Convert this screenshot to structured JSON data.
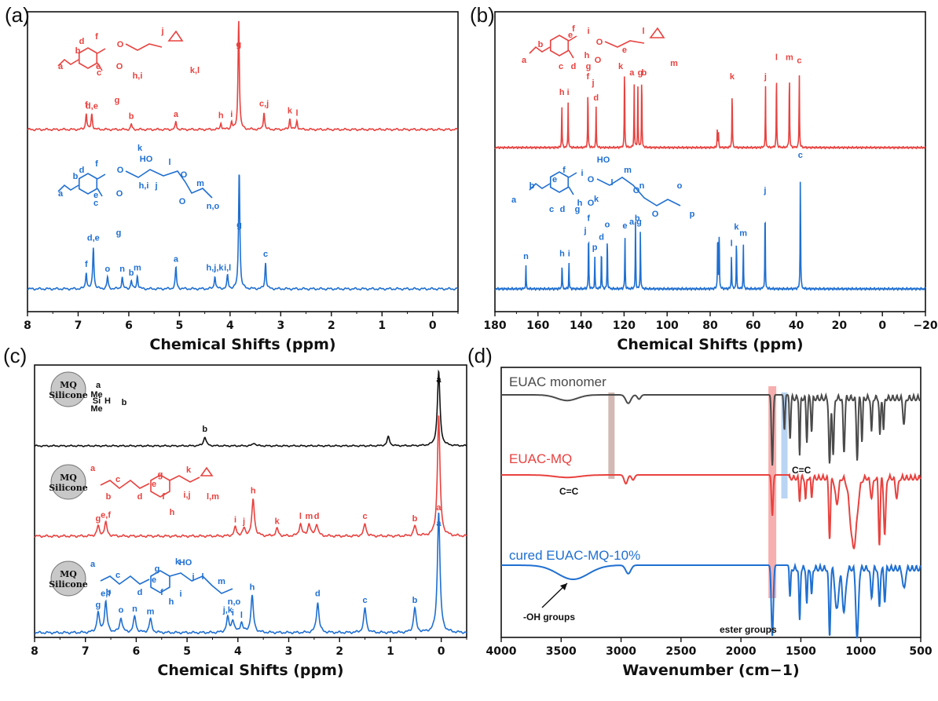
{
  "colors": {
    "red": "#e8423f",
    "blue": "#1f6fd1",
    "black": "#111111",
    "grey": "#4a4a4a",
    "band_brown": "#c7a8a0",
    "band_red": "#f59a9a",
    "band_blue": "#a9c9f0"
  },
  "panels": {
    "a": "(a)",
    "b": "(b)",
    "c": "(c)",
    "d": "(d)"
  },
  "chart_data": [
    {
      "id": "a",
      "type": "line",
      "xlabel": "Chemical Shifts (ppm)",
      "xlim": [
        8,
        -0.5
      ],
      "xticks": [
        "8",
        "7",
        "6",
        "5",
        "4",
        "3",
        "2",
        "1",
        "0"
      ],
      "series": [
        {
          "color": "red",
          "peaks": [
            [
              6.84,
              0.15,
              "f"
            ],
            [
              6.73,
              0.14,
              "d,e"
            ],
            [
              5.95,
              0.05,
              "b"
            ],
            [
              5.07,
              0.07,
              "a"
            ],
            [
              4.18,
              0.06,
              "h"
            ],
            [
              3.97,
              0.07,
              "i"
            ],
            [
              3.83,
              1.0,
              "g"
            ],
            [
              3.33,
              0.16,
              "c,j"
            ],
            [
              2.82,
              0.1,
              "k"
            ],
            [
              2.68,
              0.08,
              "l"
            ]
          ],
          "structure_labels": [
            "a",
            "b",
            "c",
            "d",
            "e",
            "f",
            "g",
            "h,i",
            "j",
            "k,l"
          ]
        },
        {
          "color": "blue",
          "peaks": [
            [
              6.84,
              0.14,
              "f"
            ],
            [
              6.7,
              0.35,
              "d,e"
            ],
            [
              6.42,
              0.1,
              "o"
            ],
            [
              6.13,
              0.1,
              "n"
            ],
            [
              5.95,
              0.07,
              "b"
            ],
            [
              5.83,
              0.11,
              "m"
            ],
            [
              5.07,
              0.18,
              "a"
            ],
            [
              4.3,
              0.11,
              "h,j,k"
            ],
            [
              4.05,
              0.11,
              "i,l"
            ],
            [
              3.82,
              1.0,
              "g"
            ],
            [
              3.3,
              0.22,
              "c"
            ]
          ],
          "structure_labels": [
            "a",
            "b",
            "c",
            "d",
            "e",
            "f",
            "g",
            "h,i",
            "j",
            "k",
            "l",
            "m",
            "n,o"
          ]
        }
      ]
    },
    {
      "id": "b",
      "type": "line",
      "xlabel": "Chemical Shifts (ppm)",
      "xlim": [
        180,
        -20
      ],
      "xticks": [
        "180",
        "160",
        "140",
        "120",
        "100",
        "80",
        "60",
        "40",
        "20",
        "0",
        "−20"
      ],
      "series": [
        {
          "color": "red",
          "peaks": [
            [
              148.9,
              0.45,
              "h"
            ],
            [
              146,
              0.45,
              "i"
            ],
            [
              136.8,
              0.6,
              "f"
            ],
            [
              133,
              0.4,
              "d"
            ],
            [
              119.8,
              0.85,
              "e"
            ],
            [
              115.3,
              0.62,
              "a"
            ],
            [
              113.6,
              0.62,
              "g"
            ],
            [
              111.8,
              0.75,
              "b"
            ],
            [
              76.7,
              0.17,
              ""
            ],
            [
              76.2,
              0.17,
              ""
            ],
            [
              69.8,
              0.6,
              "k"
            ],
            [
              54.3,
              0.6,
              "j"
            ],
            [
              49.2,
              0.78,
              "l"
            ],
            [
              43.2,
              0.78,
              "m"
            ],
            [
              38.6,
              0.75,
              "c"
            ]
          ],
          "structure_labels": [
            "a",
            "b",
            "c",
            "d",
            "e",
            "f",
            "g",
            "h",
            "i",
            "j",
            "k",
            "l",
            "m"
          ]
        },
        {
          "color": "blue",
          "peaks": [
            [
              165.6,
              0.2,
              "n"
            ],
            [
              148.8,
              0.22,
              "h"
            ],
            [
              145.6,
              0.22,
              "i"
            ],
            [
              136.5,
              0.5,
              "f"
            ],
            [
              133.6,
              0.27,
              "p"
            ],
            [
              130.5,
              0.35,
              "d"
            ],
            [
              127.8,
              0.45,
              "o"
            ],
            [
              119.6,
              0.44,
              "e"
            ],
            [
              114.7,
              0.55,
              "a,g"
            ],
            [
              112.4,
              0.5,
              "b"
            ],
            [
              76.5,
              0.5,
              ""
            ],
            [
              75.8,
              0.5,
              ""
            ],
            [
              70.1,
              0.3,
              "l"
            ],
            [
              67.8,
              0.43,
              "k"
            ],
            [
              64.6,
              0.38,
              "m"
            ],
            [
              54.5,
              0.72,
              "j"
            ],
            [
              38.1,
              1.0,
              "c"
            ]
          ],
          "structure_labels": [
            "a",
            "b",
            "c",
            "d",
            "e",
            "f",
            "g",
            "h",
            "i",
            "j",
            "k",
            "l",
            "m",
            "n",
            "o",
            "p"
          ]
        }
      ]
    },
    {
      "id": "c",
      "type": "line",
      "xlabel": "Chemical Shifts (ppm)",
      "xlim": [
        8,
        -0.5
      ],
      "xticks": [
        "8",
        "7",
        "6",
        "5",
        "4",
        "3",
        "2",
        "1",
        "0"
      ],
      "series": [
        {
          "color": "black",
          "peaks": [
            [
              4.65,
              0.12,
              "b"
            ],
            [
              3.68,
              0.04,
              ""
            ],
            [
              1.04,
              0.12,
              ""
            ],
            [
              0.05,
              1.0,
              "a"
            ]
          ],
          "structure_labels": [
            "MQ",
            "Silicone",
            "a",
            "Me",
            "Si",
            "H",
            "Me",
            "b"
          ]
        },
        {
          "color": "red",
          "peaks": [
            [
              6.75,
              0.08,
              "g"
            ],
            [
              6.6,
              0.11,
              "e,f"
            ],
            [
              4.05,
              0.07,
              "i"
            ],
            [
              3.88,
              0.06,
              "j"
            ],
            [
              3.7,
              0.3,
              "h"
            ],
            [
              3.23,
              0.06,
              "k"
            ],
            [
              2.77,
              0.1,
              "l"
            ],
            [
              2.6,
              0.1,
              "m"
            ],
            [
              2.45,
              0.1,
              "d"
            ],
            [
              1.5,
              0.1,
              "c"
            ],
            [
              0.52,
              0.08,
              "b"
            ],
            [
              0.05,
              1.0,
              "a"
            ]
          ],
          "structure_labels": [
            "MQ",
            "Silicone",
            "a",
            "Me",
            "Si",
            "Me",
            "b",
            "c",
            "d",
            "g",
            "e",
            "f",
            "O",
            "h",
            "i,j",
            "k",
            "O",
            "l,m"
          ]
        },
        {
          "color": "blue",
          "peaks": [
            [
              6.75,
              0.16,
              "g"
            ],
            [
              6.6,
              0.25,
              "e,f"
            ],
            [
              6.3,
              0.12,
              "o"
            ],
            [
              6.03,
              0.13,
              "n"
            ],
            [
              5.72,
              0.11,
              "m"
            ],
            [
              4.2,
              0.12,
              "j,k"
            ],
            [
              4.1,
              0.1,
              "i"
            ],
            [
              3.93,
              0.08,
              "l"
            ],
            [
              3.72,
              0.3,
              "h"
            ],
            [
              2.43,
              0.25,
              "d"
            ],
            [
              1.5,
              0.2,
              "c"
            ],
            [
              0.52,
              0.2,
              "b"
            ],
            [
              0.05,
              1.0,
              "a"
            ]
          ],
          "structure_labels": [
            "MQ",
            "Silicone",
            "a",
            "Me",
            "Si",
            "Me",
            "b",
            "c",
            "d",
            "g",
            "e",
            "f",
            "O",
            "h",
            "i",
            "j",
            "k",
            "HO",
            "l",
            "O",
            "O",
            "m",
            "n,o"
          ]
        }
      ]
    },
    {
      "id": "d",
      "type": "line",
      "xlabel": "Wavenumber (cm−1)",
      "xlim": [
        4000,
        500
      ],
      "xticks": [
        "4000",
        "3500",
        "3000",
        "2500",
        "2000",
        "1500",
        "1000",
        "500"
      ],
      "series": [
        {
          "name": "EUAC monomer",
          "color": "grey"
        },
        {
          "name": "EUAC-MQ",
          "color": "red"
        },
        {
          "name": "cured EUAC-MQ-10%",
          "color": "blue"
        }
      ],
      "annotations": [
        "C=C",
        "C=C",
        "-OH groups",
        "ester groups"
      ],
      "bands": [
        3080,
        1738,
        1637
      ]
    }
  ]
}
